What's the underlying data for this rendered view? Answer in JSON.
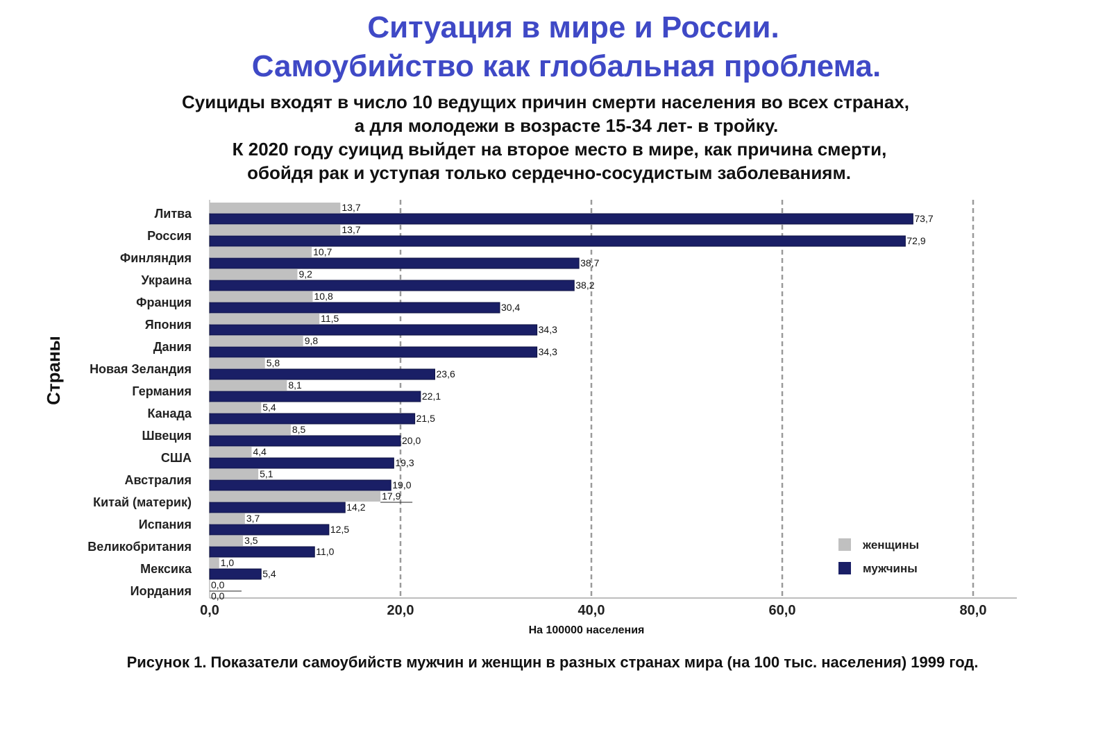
{
  "header": {
    "title_line1": "Ситуация в мире и России.",
    "title_line2": "Самоубийство как глобальная проблема.",
    "subtitle_lines": [
      "Суициды входят в число 10 ведущих причин смерти населения во всех странах,",
      "а для молодежи в возрасте 15-34 лет- в тройку.",
      "К 2020 году суицид выйдет на второе место в мире, как причина смерти,",
      "обойдя рак и уступая только сердечно-сосудистым заболеваниям."
    ]
  },
  "caption": "Рисунок 1. Показатели самоубийств мужчин и женщин в разных странах мира (на 100 тыс. населения) 1999 год.",
  "chart_data": {
    "type": "bar",
    "orientation": "horizontal",
    "ylabel": "Страны",
    "xlabel": "На 100000 населения",
    "xlim": [
      0,
      80
    ],
    "xticks": [
      "0,0",
      "20,0",
      "40,0",
      "60,0",
      "80,0"
    ],
    "grid": "vertical dashed",
    "legend_position": "bottom-right",
    "categories": [
      "Литва",
      "Россия",
      "Финляндия",
      "Украина",
      "Франция",
      "Япония",
      "Дания",
      "Новая Зеландия",
      "Германия",
      "Канада",
      "Швеция",
      "США",
      "Австралия",
      "Китай (материк)",
      "Испания",
      "Великобритания",
      "Мексика",
      "Иордания"
    ],
    "series": [
      {
        "name": "женщины",
        "color": "#c0c0c0",
        "values": [
          13.7,
          13.7,
          10.7,
          9.2,
          10.8,
          11.5,
          9.8,
          5.8,
          8.1,
          5.4,
          8.5,
          4.4,
          5.1,
          17.9,
          3.7,
          3.5,
          1.0,
          0.0
        ],
        "labels": [
          "13,7",
          "13,7",
          "10,7",
          "9,2",
          "10,8",
          "11,5",
          "9,8",
          "5,8",
          "8,1",
          "5,4",
          "8,5",
          "4,4",
          "5,1",
          "17,9",
          "3,7",
          "3,5",
          "1,0",
          "0,0"
        ]
      },
      {
        "name": "мужчины",
        "color": "#1a1f66",
        "values": [
          73.7,
          72.9,
          38.7,
          38.2,
          30.4,
          34.3,
          34.3,
          23.6,
          22.1,
          21.5,
          20.0,
          19.3,
          19.0,
          14.2,
          12.5,
          11.0,
          5.4,
          0.0
        ],
        "labels": [
          "73,7",
          "72,9",
          "38,7",
          "38,2",
          "30,4",
          "34,3",
          "34,3",
          "23,6",
          "22,1",
          "21,5",
          "20,0",
          "19,3",
          "19,0",
          "14,2",
          "12,5",
          "11,0",
          "5,4",
          "0,0"
        ]
      }
    ]
  }
}
